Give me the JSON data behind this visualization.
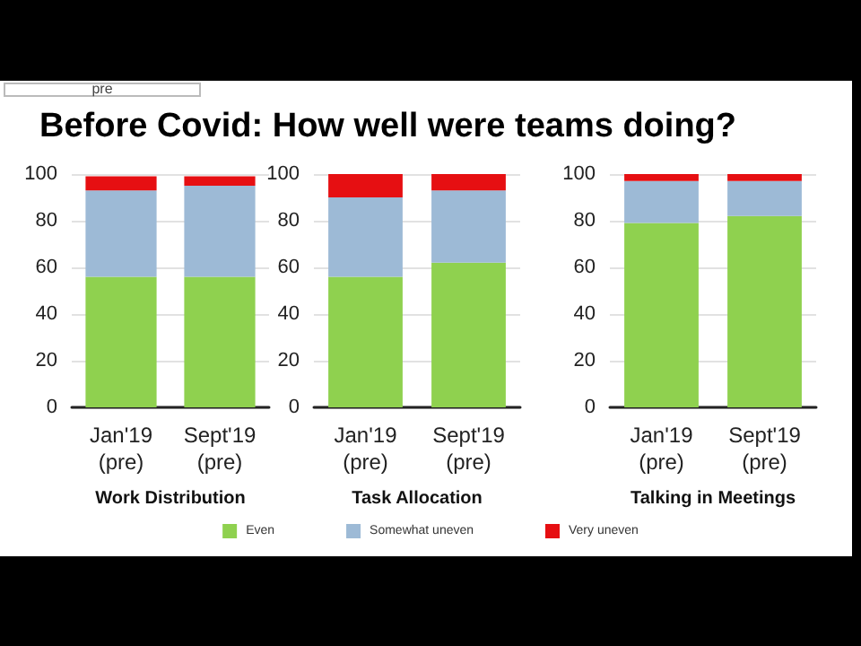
{
  "chart_data": [
    {
      "type": "bar",
      "title": "Before Covid: How well were teams doing?",
      "annotations": [
        "pre"
      ],
      "xlabel": "Work Distribution",
      "categories": [
        "Jan'19\n(pre)",
        "Sept'19\n(pre)"
      ],
      "stacked": true,
      "ylim": [
        0,
        100
      ],
      "yticks": [
        0,
        20,
        40,
        60,
        80,
        100
      ],
      "grid": "y",
      "series": [
        {
          "color": "#8fd14f",
          "values": [
            56,
            56
          ]
        },
        {
          "color": "#9dbad6",
          "values": [
            37,
            39
          ]
        },
        {
          "color": "#e60f12",
          "values": [
            6,
            4
          ]
        }
      ]
    },
    {
      "type": "bar",
      "xlabel": "Task Allocation",
      "categories": [
        "Jan'19\n(pre)",
        "Sept'19\n(pre)"
      ],
      "stacked": true,
      "ylim": [
        0,
        100
      ],
      "yticks": [
        0,
        20,
        40,
        60,
        80,
        100
      ],
      "grid": "y",
      "legend": "bottom",
      "series": [
        {
          "name": "Even",
          "color": "#8fd14f",
          "values": [
            56,
            62
          ]
        },
        {
          "name": "Somewhat uneven",
          "color": "#9dbad6",
          "values": [
            34,
            31
          ]
        },
        {
          "name": "Very uneven",
          "color": "#e60f12",
          "values": [
            10,
            7
          ]
        }
      ]
    },
    {
      "type": "bar",
      "xlabel": "Talking in Meetings",
      "categories": [
        "Jan'19\n(pre)",
        "Sept'19\n(pre)"
      ],
      "stacked": true,
      "ylim": [
        0,
        100
      ],
      "yticks": [
        0,
        20,
        40,
        60,
        80,
        100
      ],
      "grid": "y",
      "series": [
        {
          "color": "#8fd14f",
          "values": [
            79,
            82
          ]
        },
        {
          "color": "#9dbad6",
          "values": [
            18,
            15
          ]
        },
        {
          "color": "#e60f12",
          "values": [
            3,
            3
          ]
        }
      ]
    }
  ]
}
